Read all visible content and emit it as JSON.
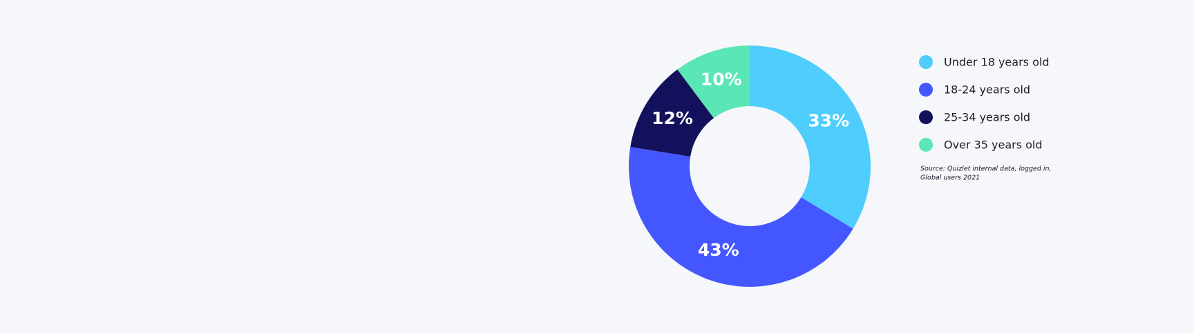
{
  "chart_data": {
    "type": "pie",
    "donut": true,
    "categories": [
      "Under 18 years old",
      "18-24 years old",
      "25-34 years old",
      "Over 35 years old"
    ],
    "values": [
      33,
      43,
      12,
      10
    ],
    "value_labels": [
      "33%",
      "43%",
      "12%",
      "10%"
    ],
    "colors": [
      "#4fcdfd",
      "#4457ff",
      "#13115b",
      "#5be6b6"
    ],
    "source": [
      "Source: Quizlet internal data, logged in,",
      "Global users 2021"
    ]
  }
}
